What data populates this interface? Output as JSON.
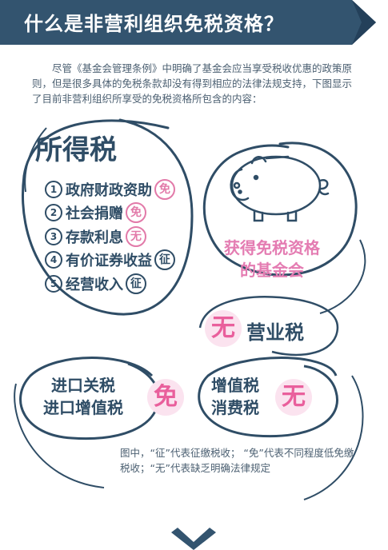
{
  "header": {
    "title": "什么是非营利组织免税资格？"
  },
  "intro": "尽管《基金会管理条例》中明确了基金会应当享受税收优惠的政策原则，但是很多具体的免税条款却没有得到相应的法律法规支持，下图显示了目前非营利组织所享受的免税资格所包含的内容：",
  "income_tax": {
    "title": "所得税",
    "items": [
      {
        "num": "1",
        "label": "政府财政资助",
        "badge": "免",
        "badge_style": "pink"
      },
      {
        "num": "2",
        "label": "社会捐赠",
        "badge": "免",
        "badge_style": "pink"
      },
      {
        "num": "3",
        "label": "存款利息",
        "badge": "无",
        "badge_style": "pink"
      },
      {
        "num": "4",
        "label": "有价证券收益",
        "badge": "征",
        "badge_style": "navy"
      },
      {
        "num": "5",
        "label": "经营收入",
        "badge": "征",
        "badge_style": "navy"
      }
    ]
  },
  "foundation": {
    "line1": "获得免税资格",
    "line2": "的基金会",
    "icon": "piggy-bank-icon"
  },
  "business_tax": {
    "badge": "无",
    "label": "营业税"
  },
  "import_tax": {
    "line1": "进口关税",
    "line2": "进口增值税",
    "badge": "免"
  },
  "vat_tax": {
    "line1": "增值税",
    "line2": "消费税",
    "badge": "无"
  },
  "note": "图中，“征”代表征缴税收；  “免”代表不同程度低免缴税收；“无”代表缺乏明确法律规定",
  "colors": {
    "navy": "#2f4d66",
    "pink": "#e47cb2",
    "badge_bg": "#fbe3ef"
  }
}
